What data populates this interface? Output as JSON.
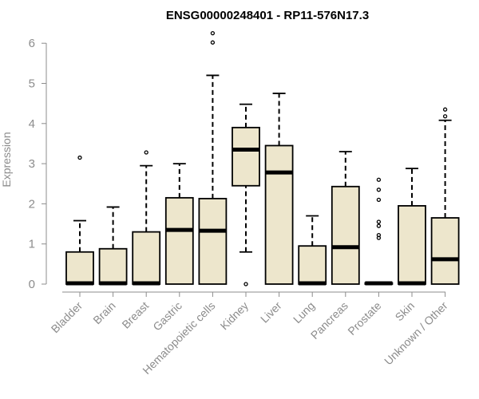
{
  "chart_data": {
    "type": "boxplot",
    "title": "ENSG00000248401 - RP11-576N17.3",
    "xlabel": "",
    "ylabel": "Expression",
    "ylim": [
      0,
      6.3
    ],
    "yticks": [
      0,
      1,
      2,
      3,
      4,
      5,
      6
    ],
    "grid": false,
    "colors": {
      "box_fill": "#ede6cc",
      "stroke": "#000000",
      "axis": "#8c8c8c"
    },
    "categories": [
      "Bladder",
      "Brain",
      "Breast",
      "Gastric",
      "Hematopoietic cells",
      "Kidney",
      "Liver",
      "Lung",
      "Pancreas",
      "Prostate",
      "Skin",
      "Unknown / Other"
    ],
    "boxes": [
      {
        "label": "Bladder",
        "whisker_low": 0,
        "q1": 0,
        "median": 0.02,
        "q3": 0.8,
        "whisker_high": 1.58,
        "outliers": [
          3.15
        ]
      },
      {
        "label": "Brain",
        "whisker_low": 0,
        "q1": 0,
        "median": 0.02,
        "q3": 0.88,
        "whisker_high": 1.92,
        "outliers": []
      },
      {
        "label": "Breast",
        "whisker_low": 0,
        "q1": 0,
        "median": 0.02,
        "q3": 1.3,
        "whisker_high": 2.95,
        "outliers": [
          3.28
        ]
      },
      {
        "label": "Gastric",
        "whisker_low": 0,
        "q1": 0,
        "median": 1.35,
        "q3": 2.15,
        "whisker_high": 3.0,
        "outliers": []
      },
      {
        "label": "Hematopoietic cells",
        "whisker_low": 0,
        "q1": 0,
        "median": 1.33,
        "q3": 2.13,
        "whisker_high": 5.2,
        "outliers": [
          6.02,
          6.25
        ]
      },
      {
        "label": "Kidney",
        "whisker_low": 0.8,
        "q1": 2.45,
        "median": 3.35,
        "q3": 3.9,
        "whisker_high": 4.48,
        "outliers": [
          0.0
        ]
      },
      {
        "label": "Liver",
        "whisker_low": 0,
        "q1": 0,
        "median": 2.78,
        "q3": 3.45,
        "whisker_high": 4.75,
        "outliers": []
      },
      {
        "label": "Lung",
        "whisker_low": 0,
        "q1": 0,
        "median": 0.02,
        "q3": 0.95,
        "whisker_high": 1.7,
        "outliers": []
      },
      {
        "label": "Pancreas",
        "whisker_low": 0,
        "q1": 0,
        "median": 0.92,
        "q3": 2.43,
        "whisker_high": 3.3,
        "outliers": []
      },
      {
        "label": "Prostate",
        "whisker_low": 0,
        "q1": 0,
        "median": 0.02,
        "q3": 0.03,
        "whisker_high": 0.03,
        "outliers": [
          1.15,
          1.22,
          1.45,
          1.55,
          2.1,
          2.35,
          2.6
        ]
      },
      {
        "label": "Skin",
        "whisker_low": 0,
        "q1": 0,
        "median": 0.02,
        "q3": 1.95,
        "whisker_high": 2.88,
        "outliers": []
      },
      {
        "label": "Unknown / Other",
        "whisker_low": 0,
        "q1": 0,
        "median": 0.62,
        "q3": 1.65,
        "whisker_high": 4.08,
        "outliers": [
          4.18,
          4.35
        ]
      }
    ]
  }
}
